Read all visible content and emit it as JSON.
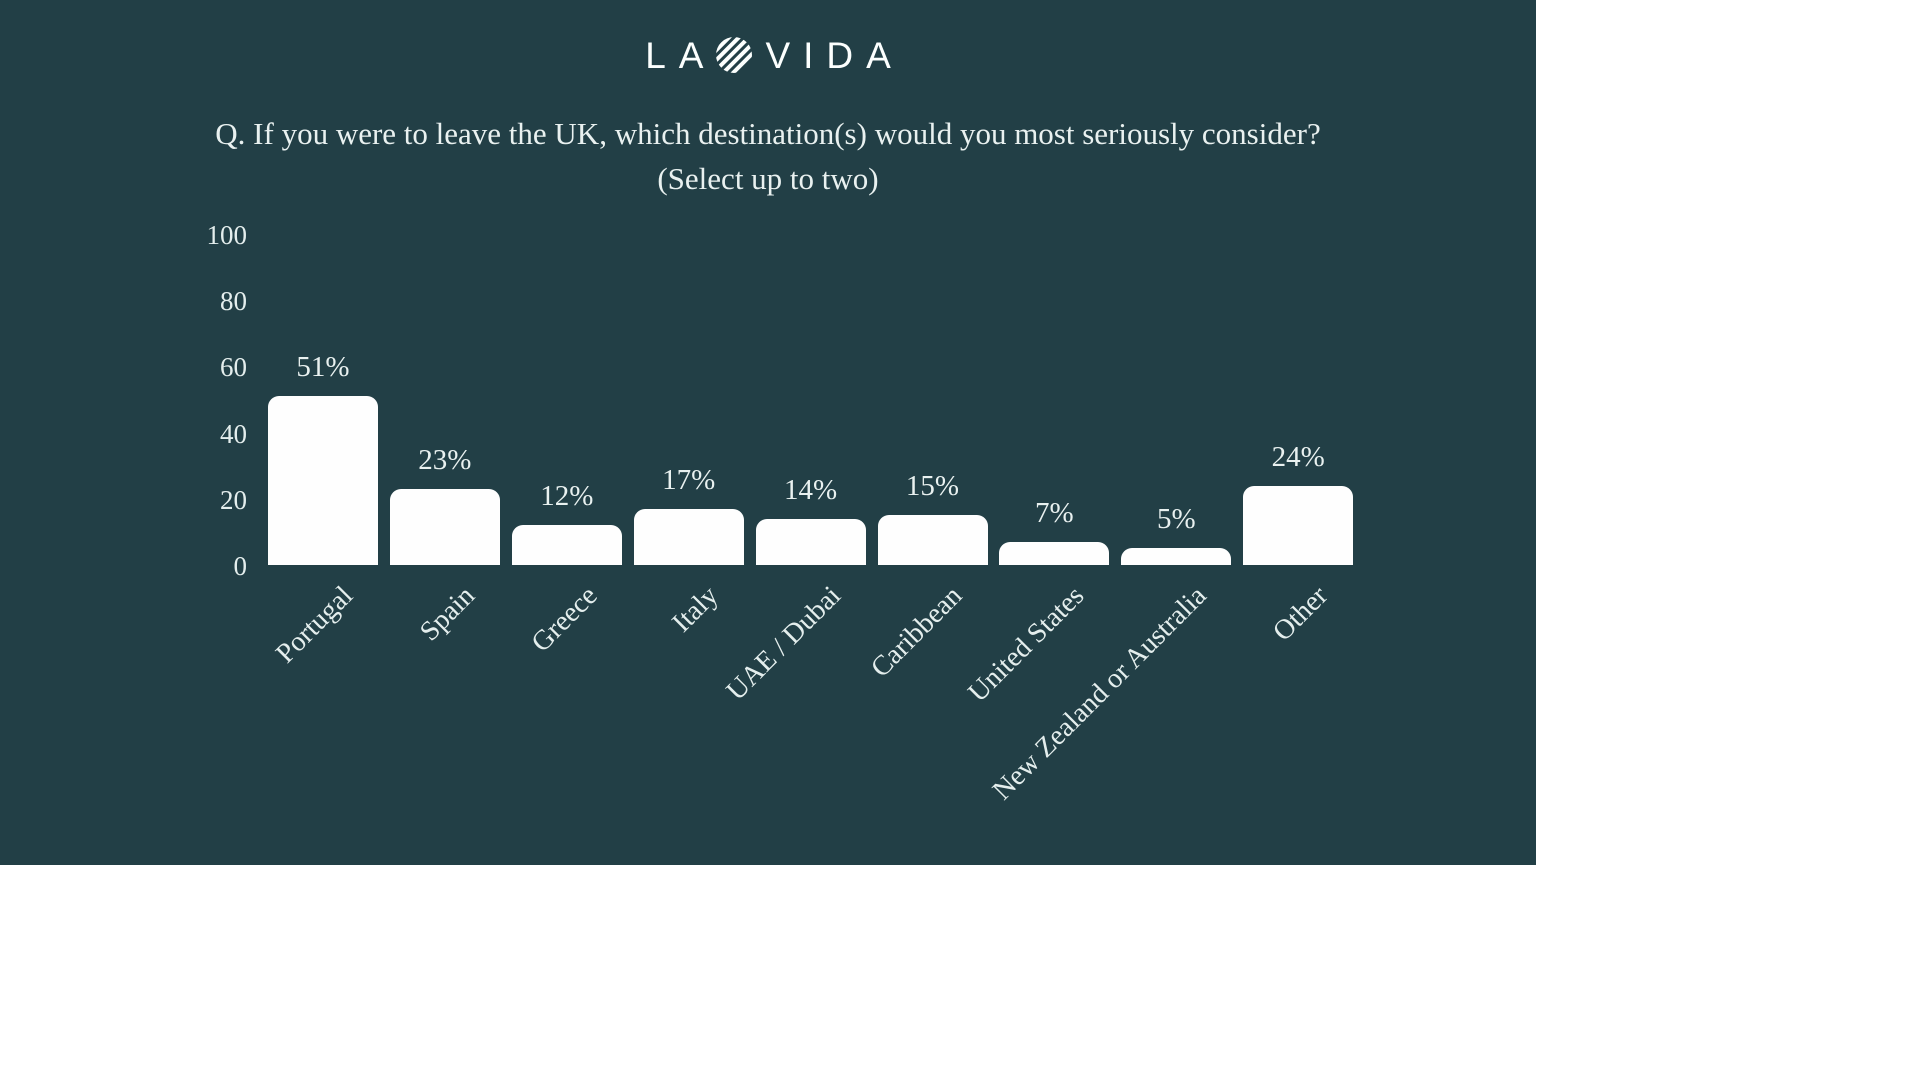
{
  "brand": {
    "logo_left": "LA",
    "logo_right": "VIDA",
    "logo_icon": "diagonal-striped-circle"
  },
  "chart_data": {
    "type": "bar",
    "title": "Q. If you were to leave the UK, which destination(s) would you most seriously consider?",
    "subtitle": "(Select up to two)",
    "categories": [
      "Portugal",
      "Spain",
      "Greece",
      "Italy",
      "UAE / Dubai",
      "Caribbean",
      "United States",
      "New Zealand or Australia",
      "Other"
    ],
    "values": [
      51,
      23,
      12,
      17,
      14,
      15,
      7,
      5,
      24
    ],
    "value_labels": [
      "51%",
      "23%",
      "12%",
      "17%",
      "14%",
      "15%",
      "7%",
      "5%",
      "24%"
    ],
    "y_ticks": [
      0,
      20,
      40,
      60,
      80,
      100
    ],
    "ylim": [
      0,
      100
    ],
    "x_label_rotation_deg": 45,
    "grid": false,
    "legend": false,
    "colors": {
      "background": "#223f46",
      "bar": "#fefefe",
      "text": "#e6efee"
    }
  }
}
